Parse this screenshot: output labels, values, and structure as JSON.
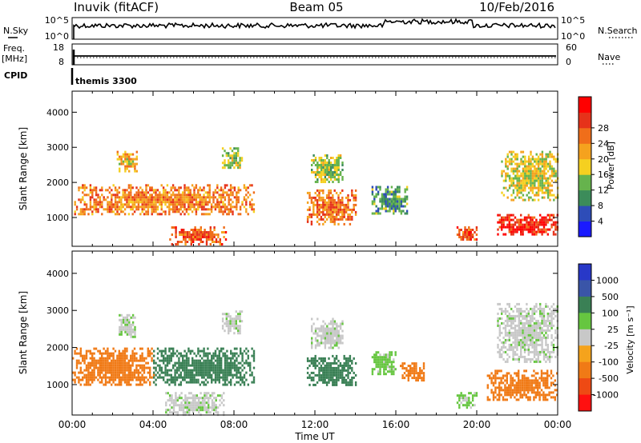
{
  "header": {
    "station": "Inuvik (fitACF)",
    "beam": "Beam 05",
    "date": "10/Feb/2016"
  },
  "strips": {
    "nsky_label": "N.Sky",
    "nsky_ticks": [
      "10^5",
      "10^0"
    ],
    "nsearch_label": "N.Search",
    "nsearch_ticks": [
      "10^5",
      "10^0"
    ],
    "freq_label": "Freq.",
    "freq_unit": "[MHz]",
    "freq_ticks": [
      "18",
      "8"
    ],
    "nave_label": "Nave",
    "nave_ticks": [
      "60",
      "0"
    ],
    "cpid_label": "CPID",
    "cpid_value": "themis 3300"
  },
  "colors": {
    "power": [
      "#1a1aff",
      "#2e4db8",
      "#3c8c5a",
      "#66b34d",
      "#f5d020",
      "#f5a21e",
      "#f06e1a",
      "#e6321a",
      "#ff0000"
    ],
    "velocity": [
      "#2838c8",
      "#3a55a8",
      "#3a8055",
      "#66c640",
      "#c8c8c8",
      "#f5a31c",
      "#f07a16",
      "#ee4a14",
      "#ff1010"
    ]
  },
  "chart_data": [
    {
      "type": "heatmap",
      "title": "",
      "xlabel": "",
      "ylabel": "Slant Range [km]",
      "x_ticks": [
        "00:00",
        "04:00",
        "08:00",
        "12:00",
        "16:00",
        "20:00",
        "00:00"
      ],
      "x_range_hours": [
        0,
        24
      ],
      "y_ticks": [
        "1000",
        "2000",
        "3000",
        "4000"
      ],
      "ylim": [
        180,
        4600
      ],
      "colorbar": {
        "label": "Power [dB]",
        "ticks": [
          "4",
          "8",
          "12",
          "16",
          "20",
          "24",
          "28"
        ],
        "range": [
          0,
          32
        ]
      },
      "regions": [
        {
          "t": [
            0.1,
            9.0
          ],
          "r": [
            1100,
            1950
          ],
          "v": 22
        },
        {
          "t": [
            2.2,
            3.2
          ],
          "r": [
            2300,
            2900
          ],
          "v": 18
        },
        {
          "t": [
            4.8,
            7.6
          ],
          "r": [
            250,
            750
          ],
          "v": 24
        },
        {
          "t": [
            7.4,
            8.4
          ],
          "r": [
            2400,
            3000
          ],
          "v": 14
        },
        {
          "t": [
            11.6,
            14.0
          ],
          "r": [
            800,
            1800
          ],
          "v": 23
        },
        {
          "t": [
            11.8,
            13.4
          ],
          "r": [
            2000,
            2800
          ],
          "v": 14
        },
        {
          "t": [
            14.8,
            16.6
          ],
          "r": [
            1100,
            1900
          ],
          "v": 10
        },
        {
          "t": [
            19.0,
            20.0
          ],
          "r": [
            350,
            750
          ],
          "v": 26
        },
        {
          "t": [
            21.0,
            24.0
          ],
          "r": [
            500,
            1100
          ],
          "v": 28
        },
        {
          "t": [
            21.2,
            24.0
          ],
          "r": [
            1500,
            2900
          ],
          "v": 16
        }
      ]
    },
    {
      "type": "heatmap",
      "title": "",
      "xlabel": "Time UT",
      "ylabel": "Slant Range [km]",
      "x_ticks": [
        "00:00",
        "04:00",
        "08:00",
        "12:00",
        "16:00",
        "20:00",
        "00:00"
      ],
      "x_range_hours": [
        0,
        24
      ],
      "y_ticks": [
        "1000",
        "2000",
        "3000",
        "4000"
      ],
      "ylim": [
        180,
        4600
      ],
      "colorbar": {
        "label": "Velocity [m s⁻¹]",
        "ticks": [
          "1000",
          "500",
          "100",
          "25",
          "-25",
          "-100",
          "-500",
          "-1000"
        ]
      },
      "regions": [
        {
          "t": [
            0.0,
            4.0
          ],
          "r": [
            1000,
            2000
          ],
          "v": -200
        },
        {
          "t": [
            4.0,
            9.0
          ],
          "r": [
            1000,
            2000
          ],
          "v": 150
        },
        {
          "t": [
            2.3,
            3.1
          ],
          "r": [
            2300,
            2900
          ],
          "v": 10
        },
        {
          "t": [
            4.6,
            7.5
          ],
          "r": [
            200,
            800
          ],
          "v": 5
        },
        {
          "t": [
            7.4,
            8.4
          ],
          "r": [
            2400,
            3000
          ],
          "v": 5
        },
        {
          "t": [
            11.6,
            14.0
          ],
          "r": [
            1000,
            1800
          ],
          "v": 150
        },
        {
          "t": [
            11.8,
            13.4
          ],
          "r": [
            2000,
            2800
          ],
          "v": 5
        },
        {
          "t": [
            14.8,
            16.0
          ],
          "r": [
            1300,
            1900
          ],
          "v": 50
        },
        {
          "t": [
            16.2,
            17.4
          ],
          "r": [
            1100,
            1600
          ],
          "v": -150
        },
        {
          "t": [
            19.0,
            20.0
          ],
          "r": [
            400,
            800
          ],
          "v": 40
        },
        {
          "t": [
            20.5,
            24.0
          ],
          "r": [
            600,
            1400
          ],
          "v": -300
        },
        {
          "t": [
            21.0,
            24.0
          ],
          "r": [
            1600,
            3200
          ],
          "v": 5
        }
      ]
    }
  ]
}
